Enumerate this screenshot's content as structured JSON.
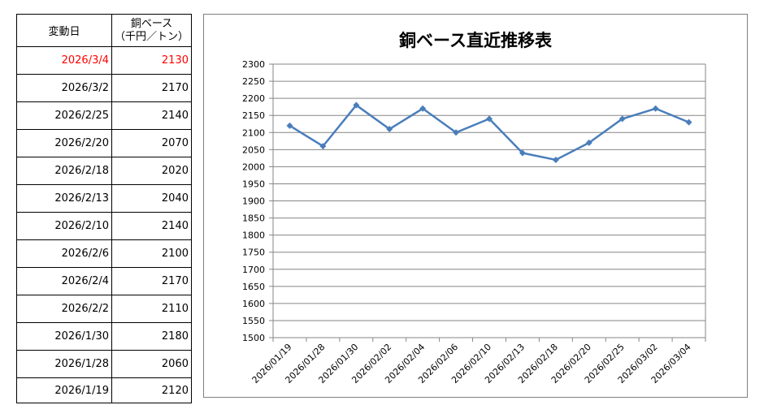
{
  "table": {
    "header": {
      "date": "変動日",
      "value_line1": "銅ベース",
      "value_line2": "（千円／トン）"
    },
    "rows": [
      {
        "date": "2026/3/4",
        "value": "2130",
        "highlight": true
      },
      {
        "date": "2026/3/2",
        "value": "2170"
      },
      {
        "date": "2026/2/25",
        "value": "2140"
      },
      {
        "date": "2026/2/20",
        "value": "2070"
      },
      {
        "date": "2026/2/18",
        "value": "2020"
      },
      {
        "date": "2026/2/13",
        "value": "2040"
      },
      {
        "date": "2026/2/10",
        "value": "2140"
      },
      {
        "date": "2026/2/6",
        "value": "2100"
      },
      {
        "date": "2026/2/4",
        "value": "2170"
      },
      {
        "date": "2026/2/2",
        "value": "2110"
      },
      {
        "date": "2026/1/30",
        "value": "2180"
      },
      {
        "date": "2026/1/28",
        "value": "2060"
      },
      {
        "date": "2026/1/19",
        "value": "2120"
      }
    ],
    "highlight_color": "#ff0000"
  },
  "chart_data": {
    "type": "line",
    "title": "銅ベース直近推移表",
    "xlabel": "",
    "ylabel": "",
    "categories": [
      "2026/01/19",
      "2026/01/28",
      "2026/01/30",
      "2026/02/02",
      "2026/02/04",
      "2026/02/06",
      "2026/02/10",
      "2026/02/13",
      "2026/02/18",
      "2026/02/20",
      "2026/02/25",
      "2026/03/02",
      "2026/03/04"
    ],
    "series": [
      {
        "values": [
          2120,
          2060,
          2180,
          2110,
          2170,
          2100,
          2140,
          2040,
          2020,
          2070,
          2140,
          2170,
          2130
        ],
        "color": "#4a7ebb",
        "marker": "diamond"
      }
    ],
    "ylim": [
      1500,
      2300
    ],
    "ystep": 50,
    "grid": true,
    "legend": "none"
  }
}
